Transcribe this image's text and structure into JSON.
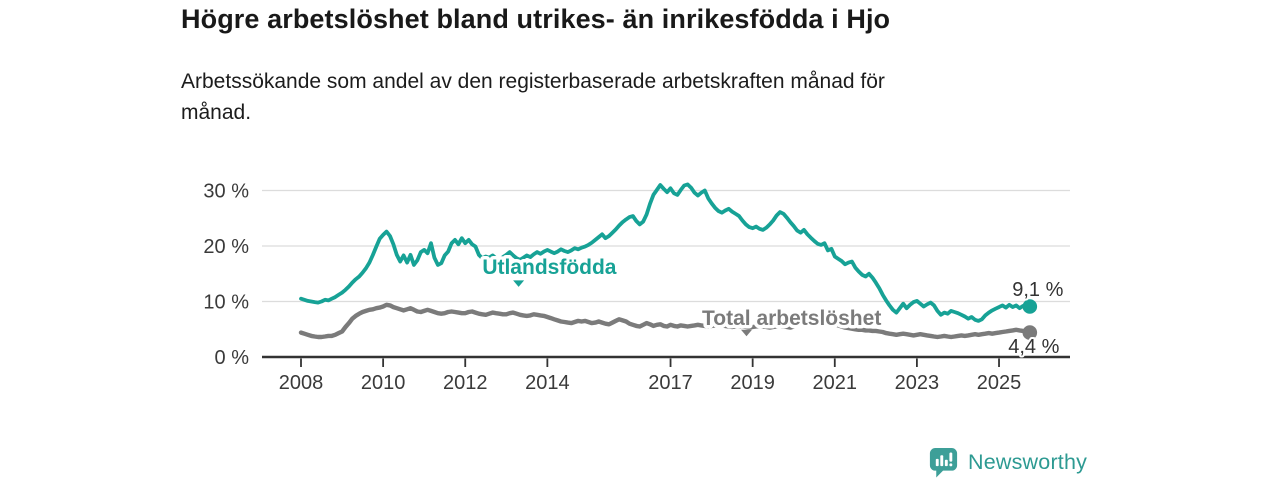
{
  "header": {
    "title": "Högre arbetslöshet bland utrikes- än inrikesfödda i Hjo",
    "subtitle_line1": "Arbetssökande som andel av den registerbaserade arbetskraften månad för",
    "subtitle_line2": "månad."
  },
  "footer": {
    "brand": "Newsworthy",
    "logo_icon": "bar-chart-speech-bubble-icon"
  },
  "colors": {
    "teal": "#17a296",
    "gray_line": "#7b7b7b",
    "axis": "#333333",
    "gridline": "#dcdcdc",
    "tick_text": "#3a3a3a",
    "value_text": "#333333",
    "title_text": "#191919",
    "brand_teal": "#2d9a92"
  },
  "chart_data": {
    "type": "line",
    "title": "Högre arbetslöshet bland utrikes- än inrikesfödda i Hjo",
    "subtitle": "Arbetssökande som andel av den registerbaserade arbetskraften månad för månad.",
    "x_unit": "months",
    "x_start_year": 2008,
    "x_ticks": [
      2008,
      2010,
      2012,
      2014,
      2017,
      2019,
      2021,
      2023,
      2025
    ],
    "x_tick_labels": [
      "2008",
      "2010",
      "2012",
      "2014",
      "2017",
      "2019",
      "2021",
      "2023",
      "2025"
    ],
    "y_ticks": [
      0,
      10,
      20,
      30
    ],
    "y_tick_labels": [
      "0 %",
      "10 %",
      "20 %",
      "30 %"
    ],
    "ylim": [
      0,
      32.8
    ],
    "grid": "horizontal",
    "legend_position": "inline-labels",
    "series": [
      {
        "name": "Total arbetslöshet",
        "slug": "total-arbetsloshet",
        "color": "#7b7b7b",
        "line_width": 4.4,
        "end_label": "4,4 %",
        "end_label_side": "below",
        "inline_label": {
          "year": 2019.95,
          "value": 7.0,
          "caret_year": 2018.85,
          "caret_value": 4.9
        },
        "values": [
          4.4,
          4.2,
          4.0,
          3.8,
          3.7,
          3.6,
          3.6,
          3.7,
          3.8,
          3.8,
          4.0,
          4.3,
          4.6,
          5.4,
          6.1,
          6.9,
          7.4,
          7.8,
          8.1,
          8.3,
          8.5,
          8.6,
          8.8,
          8.9,
          9.1,
          9.4,
          9.3,
          9.0,
          8.8,
          8.6,
          8.4,
          8.6,
          8.8,
          8.5,
          8.2,
          8.1,
          8.3,
          8.5,
          8.3,
          8.1,
          7.9,
          7.8,
          7.9,
          8.1,
          8.2,
          8.1,
          8.0,
          7.9,
          7.9,
          8.1,
          8.2,
          8.0,
          7.8,
          7.7,
          7.6,
          7.8,
          8.0,
          7.9,
          7.8,
          7.7,
          7.7,
          7.9,
          8.0,
          7.8,
          7.6,
          7.5,
          7.4,
          7.5,
          7.7,
          7.6,
          7.5,
          7.4,
          7.2,
          7.0,
          6.8,
          6.6,
          6.4,
          6.3,
          6.2,
          6.1,
          6.3,
          6.5,
          6.4,
          6.5,
          6.3,
          6.1,
          6.2,
          6.4,
          6.2,
          6.0,
          5.9,
          6.2,
          6.5,
          6.8,
          6.6,
          6.4,
          6.0,
          5.8,
          5.6,
          5.5,
          5.8,
          6.1,
          5.9,
          5.6,
          5.8,
          5.9,
          5.6,
          5.5,
          5.8,
          5.6,
          5.5,
          5.7,
          5.6,
          5.5,
          5.6,
          5.7,
          5.8,
          5.7,
          5.6,
          5.5,
          5.6,
          5.7,
          5.8,
          5.7,
          5.6,
          5.5,
          5.4,
          5.5,
          5.6,
          5.5,
          5.4,
          5.3,
          5.4,
          5.5,
          5.6,
          5.5,
          5.4,
          5.3,
          5.4,
          5.5,
          5.6,
          5.5,
          5.4,
          5.3,
          5.5,
          5.8,
          6.4,
          6.9,
          7.2,
          7.3,
          7.1,
          6.9,
          6.7,
          6.5,
          6.3,
          6.1,
          5.9,
          5.7,
          5.5,
          5.3,
          5.2,
          5.1,
          5.0,
          4.9,
          4.9,
          4.8,
          4.8,
          4.7,
          4.7,
          4.6,
          4.5,
          4.3,
          4.2,
          4.1,
          4.0,
          4.1,
          4.2,
          4.1,
          4.0,
          3.9,
          4.0,
          4.1,
          4.0,
          3.9,
          3.8,
          3.7,
          3.6,
          3.7,
          3.8,
          3.7,
          3.6,
          3.7,
          3.8,
          3.9,
          3.8,
          3.9,
          4.0,
          4.1,
          4.0,
          4.1,
          4.2,
          4.3,
          4.2,
          4.3,
          4.4,
          4.5,
          4.6,
          4.7,
          4.8,
          4.9,
          4.8,
          4.7,
          4.6,
          4.4
        ]
      },
      {
        "name": "Utlandsfödda",
        "slug": "utlandsfodda",
        "color": "#17a296",
        "line_width": 3.8,
        "end_label": "9,1 %",
        "end_label_side": "above",
        "inline_label": {
          "year": 2014.05,
          "value": 16.2,
          "caret_year": 2013.3,
          "caret_value": 13.8
        },
        "values": [
          10.5,
          10.3,
          10.1,
          10.0,
          9.9,
          9.8,
          10.0,
          10.3,
          10.2,
          10.5,
          10.8,
          11.2,
          11.6,
          12.1,
          12.7,
          13.4,
          14.0,
          14.5,
          15.2,
          16.0,
          17.0,
          18.4,
          19.9,
          21.3,
          22.0,
          22.6,
          21.8,
          20.3,
          18.4,
          17.2,
          18.3,
          17.0,
          18.4,
          16.6,
          17.4,
          18.9,
          19.3,
          18.7,
          20.5,
          17.9,
          16.6,
          16.9,
          18.3,
          19.0,
          20.5,
          21.1,
          20.3,
          21.4,
          20.5,
          21.1,
          20.3,
          19.9,
          18.4,
          17.8,
          18.1,
          17.9,
          18.3,
          17.8,
          17.5,
          18.0,
          18.4,
          18.9,
          18.3,
          17.8,
          17.5,
          17.9,
          18.3,
          18.0,
          18.5,
          18.9,
          18.6,
          19.0,
          19.3,
          19.0,
          18.7,
          19.0,
          19.4,
          19.1,
          18.9,
          19.2,
          19.6,
          19.4,
          19.7,
          19.9,
          20.2,
          20.6,
          21.1,
          21.6,
          22.1,
          21.4,
          21.8,
          22.4,
          23.0,
          23.7,
          24.3,
          24.8,
          25.2,
          25.4,
          24.5,
          23.9,
          24.4,
          25.7,
          27.6,
          29.2,
          30.1,
          31.0,
          30.3,
          29.7,
          30.4,
          29.5,
          29.2,
          30.1,
          30.9,
          31.1,
          30.5,
          29.6,
          29.1,
          29.6,
          30.0,
          28.6,
          27.7,
          26.9,
          26.3,
          26.0,
          26.4,
          26.7,
          26.2,
          25.8,
          25.4,
          24.6,
          23.9,
          23.4,
          23.2,
          23.5,
          23.1,
          22.9,
          23.3,
          23.9,
          24.6,
          25.5,
          26.1,
          25.8,
          25.1,
          24.3,
          23.6,
          22.8,
          22.4,
          22.9,
          22.1,
          21.5,
          20.9,
          20.4,
          20.2,
          20.5,
          19.2,
          19.5,
          18.1,
          17.7,
          17.3,
          16.7,
          17.0,
          17.2,
          16.1,
          15.4,
          14.8,
          14.5,
          15.0,
          14.3,
          13.4,
          12.4,
          11.2,
          10.2,
          9.3,
          8.5,
          8.0,
          8.8,
          9.6,
          8.8,
          9.4,
          9.9,
          10.1,
          9.6,
          9.1,
          9.5,
          9.8,
          9.3,
          8.3,
          7.6,
          8.0,
          7.8,
          8.3,
          8.1,
          7.9,
          7.6,
          7.3,
          6.9,
          7.2,
          6.7,
          6.5,
          6.8,
          7.5,
          8.0,
          8.4,
          8.7,
          9.0,
          9.3,
          8.9,
          9.4,
          9.0,
          9.3,
          8.8,
          9.2,
          8.9,
          9.1
        ]
      }
    ]
  }
}
